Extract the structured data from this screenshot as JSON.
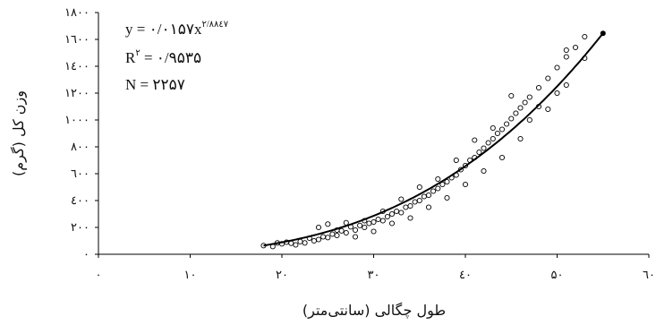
{
  "chart_data": {
    "type": "scatter",
    "xlabel": "طول چگالی (سانتی‌متر)",
    "ylabel": "وزن کل (گرم)",
    "xlim": [
      0,
      60
    ],
    "ylim": [
      0,
      1800
    ],
    "x_ticks": [
      0,
      10,
      20,
      30,
      40,
      50,
      60
    ],
    "y_ticks": [
      0,
      200,
      400,
      600,
      800,
      1000,
      1200,
      1400,
      1600,
      1800
    ],
    "x_tick_labels": [
      "۰",
      "۱۰",
      "۲۰",
      "۳۰",
      "٤۰",
      "۵۰",
      "٦۰"
    ],
    "y_tick_labels": [
      "۰",
      "۲۰۰",
      "٤۰۰",
      "٦۰۰",
      "۸۰۰",
      "۱۰۰۰",
      "۱۲۰۰",
      "۱٤۰۰",
      "۱٦۰۰",
      "۱۸۰۰"
    ],
    "grid": false,
    "fit": {
      "model": "power",
      "a": 0.0157,
      "b": 2.8847,
      "x_range": [
        18,
        55
      ],
      "equation_prefix": "y = ",
      "equation_coef": "۰/۰۱۵۷x",
      "equation_exp": "۲/۸۸٤۷",
      "r2_label": "R",
      "r2_sup": "۲",
      "r2_value": " = ۰/۹۵۳۵",
      "n_text": "N = ۲۲۵۷"
    },
    "series": [
      {
        "points": [
          [
            18.0,
            65
          ],
          [
            19.0,
            58
          ],
          [
            19.5,
            85
          ],
          [
            20.0,
            78
          ],
          [
            20.5,
            90
          ],
          [
            21.0,
            82
          ],
          [
            21.5,
            70
          ],
          [
            22.0,
            95
          ],
          [
            22.5,
            85
          ],
          [
            23.0,
            120
          ],
          [
            23.5,
            100
          ],
          [
            24.0,
            110
          ],
          [
            24.5,
            130
          ],
          [
            25.0,
            125
          ],
          [
            25.5,
            150
          ],
          [
            26.0,
            140
          ],
          [
            26.5,
            175
          ],
          [
            27.0,
            160
          ],
          [
            27.5,
            205
          ],
          [
            28.0,
            180
          ],
          [
            28.5,
            215
          ],
          [
            29.0,
            200
          ],
          [
            29.5,
            230
          ],
          [
            30.0,
            240
          ],
          [
            30.5,
            260
          ],
          [
            31.0,
            250
          ],
          [
            31.5,
            280
          ],
          [
            32.0,
            300
          ],
          [
            32.5,
            320
          ],
          [
            33.0,
            310
          ],
          [
            33.5,
            350
          ],
          [
            34.0,
            360
          ],
          [
            34.5,
            390
          ],
          [
            35.0,
            400
          ],
          [
            35.5,
            430
          ],
          [
            36.0,
            440
          ],
          [
            36.5,
            470
          ],
          [
            37.0,
            490
          ],
          [
            37.5,
            520
          ],
          [
            38.0,
            540
          ],
          [
            38.5,
            570
          ],
          [
            39.0,
            590
          ],
          [
            39.5,
            630
          ],
          [
            40.0,
            660
          ],
          [
            40.5,
            700
          ],
          [
            41.0,
            720
          ],
          [
            41.5,
            760
          ],
          [
            42.0,
            790
          ],
          [
            42.5,
            830
          ],
          [
            43.0,
            860
          ],
          [
            43.5,
            900
          ],
          [
            44.0,
            930
          ],
          [
            44.5,
            970
          ],
          [
            45.0,
            1010
          ],
          [
            45.5,
            1050
          ],
          [
            46.0,
            1090
          ],
          [
            46.5,
            1130
          ],
          [
            47.0,
            1170
          ],
          [
            48.0,
            1240
          ],
          [
            49.0,
            1310
          ],
          [
            50.0,
            1390
          ],
          [
            51.0,
            1470
          ],
          [
            52.0,
            1540
          ],
          [
            53.0,
            1620
          ],
          [
            24.0,
            200
          ],
          [
            25.0,
            225
          ],
          [
            26.0,
            180
          ],
          [
            27.0,
            235
          ],
          [
            28.0,
            130
          ],
          [
            29.0,
            250
          ],
          [
            30.0,
            170
          ],
          [
            31.0,
            320
          ],
          [
            32.0,
            230
          ],
          [
            33.0,
            410
          ],
          [
            34.0,
            270
          ],
          [
            35.0,
            500
          ],
          [
            36.0,
            350
          ],
          [
            37.0,
            560
          ],
          [
            38.0,
            420
          ],
          [
            39.0,
            700
          ],
          [
            40.0,
            520
          ],
          [
            41.0,
            850
          ],
          [
            42.0,
            620
          ],
          [
            43.0,
            940
          ],
          [
            44.0,
            720
          ],
          [
            45.0,
            1180
          ],
          [
            46.0,
            860
          ],
          [
            47.0,
            1000
          ],
          [
            48.0,
            1100
          ],
          [
            49.0,
            1080
          ],
          [
            50.0,
            1200
          ],
          [
            51.0,
            1520
          ],
          [
            51.0,
            1260
          ],
          [
            53.0,
            1460
          ]
        ]
      }
    ]
  }
}
